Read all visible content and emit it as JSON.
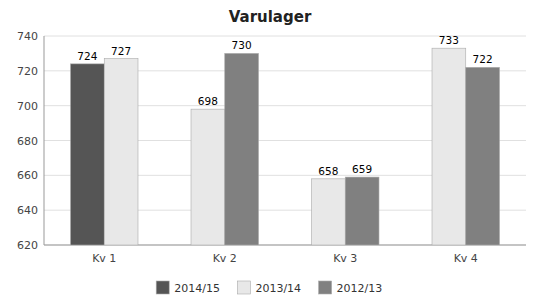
{
  "chart_data": {
    "type": "bar",
    "title": "Varulager",
    "categories": [
      "Kv 1",
      "Kv 2",
      "Kv 3",
      "Kv 4"
    ],
    "series": [
      {
        "values": [
          724,
          698,
          658,
          733
        ],
        "colors": [
          "#555555",
          "#e8e8e8",
          "#e8e8e8",
          "#e8e8e8"
        ]
      },
      {
        "values": [
          727,
          730,
          659,
          722
        ],
        "colors": [
          "#e8e8e8",
          "#808080",
          "#808080",
          "#808080"
        ]
      }
    ],
    "legend_entries": [
      {
        "name": "2014/15",
        "color": "#555555"
      },
      {
        "name": "2013/14",
        "color": "#e8e8e8"
      },
      {
        "name": "2012/13",
        "color": "#808080"
      }
    ],
    "legend": "bottom",
    "ylim": [
      620,
      740
    ],
    "yticks": [
      620,
      640,
      660,
      680,
      700,
      720,
      740
    ],
    "grid": true,
    "data_labels": true
  }
}
